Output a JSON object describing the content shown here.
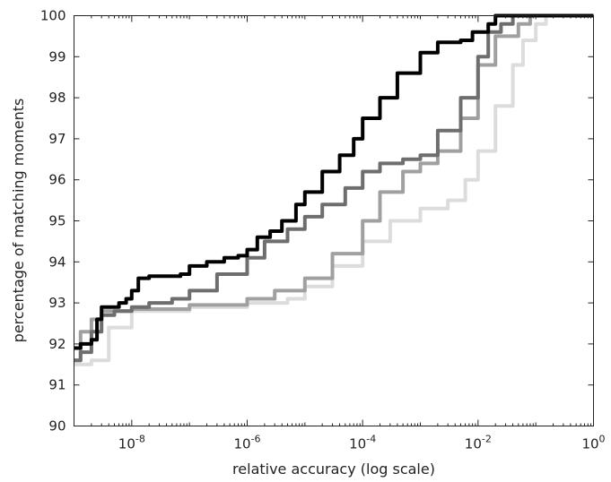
{
  "chart_data": {
    "type": "line",
    "title": "",
    "xlabel": "relative accuracy (log scale)",
    "ylabel": "percentage of matching moments",
    "x_scale": "log",
    "xlim": [
      1e-09,
      1
    ],
    "ylim": [
      90,
      100
    ],
    "grid": false,
    "x_ticks": [
      {
        "value": 1e-08,
        "base": "10",
        "exp": "-8"
      },
      {
        "value": 1e-06,
        "base": "10",
        "exp": "-6"
      },
      {
        "value": 0.0001,
        "base": "10",
        "exp": "-4"
      },
      {
        "value": 0.01,
        "base": "10",
        "exp": "-2"
      },
      {
        "value": 1,
        "base": "10",
        "exp": "0"
      }
    ],
    "y_ticks": [
      "90",
      "91",
      "92",
      "93",
      "94",
      "95",
      "96",
      "97",
      "98",
      "99",
      "100"
    ],
    "series": [
      {
        "color": "#000000",
        "width": 4,
        "x": [
          1e-09,
          1.3e-09,
          2e-09,
          2.5e-09,
          3e-09,
          4e-09,
          6e-09,
          8e-09,
          1e-08,
          1.3e-08,
          2e-08,
          4e-08,
          7e-08,
          1e-07,
          2e-07,
          4e-07,
          7e-07,
          1e-06,
          1.5e-06,
          2.5e-06,
          4e-06,
          7e-06,
          1e-05,
          2e-05,
          4e-05,
          7e-05,
          0.0001,
          0.0002,
          0.0004,
          0.001,
          0.002,
          0.005,
          0.008,
          0.015,
          0.02,
          0.03,
          0.05,
          0.1,
          0.2,
          0.5,
          1
        ],
        "y": [
          91.9,
          92.0,
          92.1,
          92.6,
          92.9,
          92.9,
          93.0,
          93.1,
          93.3,
          93.6,
          93.65,
          93.65,
          93.7,
          93.9,
          94.0,
          94.1,
          94.15,
          94.3,
          94.6,
          94.75,
          95.0,
          95.4,
          95.7,
          96.2,
          96.6,
          97.0,
          97.5,
          98.0,
          98.6,
          99.1,
          99.35,
          99.4,
          99.6,
          99.8,
          100,
          100,
          100,
          100,
          100,
          100,
          100
        ]
      },
      {
        "color": "#6e6e6e",
        "width": 4,
        "x": [
          1e-09,
          1.3e-09,
          2e-09,
          3e-09,
          5e-09,
          1e-08,
          2e-08,
          5e-08,
          1e-07,
          3e-07,
          1e-06,
          2e-06,
          5e-06,
          1e-05,
          2e-05,
          5e-05,
          0.0001,
          0.0002,
          0.0005,
          0.001,
          0.002,
          0.005,
          0.01,
          0.015,
          0.025,
          0.04,
          0.05,
          0.1,
          0.5,
          1
        ],
        "y": [
          91.6,
          91.8,
          92.3,
          92.7,
          92.8,
          92.9,
          93.0,
          93.1,
          93.3,
          93.7,
          94.1,
          94.5,
          94.8,
          95.1,
          95.4,
          95.8,
          96.2,
          96.4,
          96.5,
          96.6,
          97.2,
          98.0,
          99.0,
          99.6,
          99.8,
          100,
          100,
          100,
          100,
          100
        ]
      },
      {
        "color": "#a0a0a0",
        "width": 4,
        "x": [
          1e-09,
          1.3e-09,
          2e-09,
          3e-09,
          1e-08,
          1e-07,
          1e-06,
          3e-06,
          1e-05,
          3e-05,
          0.0001,
          0.0002,
          0.0005,
          0.001,
          0.002,
          0.005,
          0.01,
          0.02,
          0.05,
          0.08,
          0.2,
          1
        ],
        "y": [
          91.6,
          92.3,
          92.6,
          92.8,
          92.85,
          92.95,
          93.1,
          93.3,
          93.6,
          94.2,
          95.0,
          95.7,
          96.2,
          96.4,
          96.7,
          97.5,
          98.8,
          99.5,
          99.8,
          100,
          100,
          100
        ]
      },
      {
        "color": "#dcdcdc",
        "width": 4,
        "x": [
          1e-09,
          2e-09,
          4e-09,
          1e-08,
          1e-07,
          1e-06,
          5e-06,
          1e-05,
          3e-05,
          0.0001,
          0.0003,
          0.001,
          0.003,
          0.006,
          0.01,
          0.02,
          0.04,
          0.06,
          0.1,
          0.15,
          0.3,
          1
        ],
        "y": [
          91.5,
          91.6,
          92.4,
          92.8,
          92.9,
          93.0,
          93.1,
          93.4,
          93.9,
          94.5,
          95.0,
          95.3,
          95.5,
          96.0,
          96.7,
          97.8,
          98.8,
          99.4,
          99.8,
          100,
          100,
          100
        ]
      }
    ]
  }
}
